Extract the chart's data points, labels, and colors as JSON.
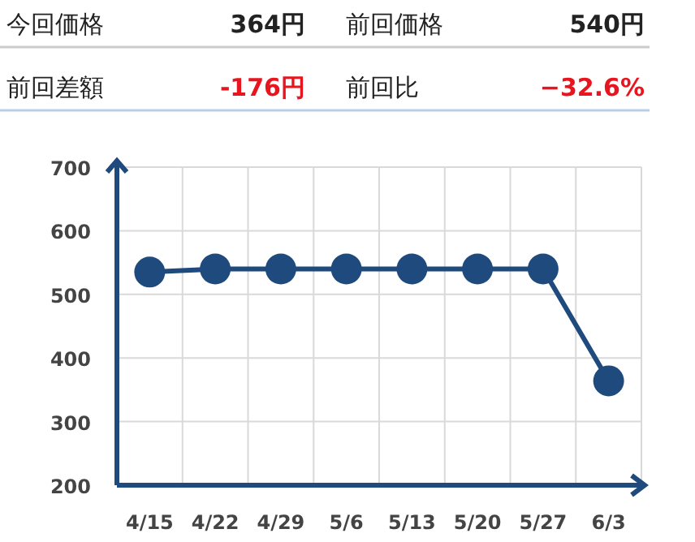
{
  "chart_data": [
    {
      "type": "other",
      "annotations": [
        "今回価格",
        "364円",
        "前回価格",
        "540円",
        "前回差額",
        "-176円",
        "前回比",
        "−32.6%"
      ]
    },
    {
      "type": "line",
      "categories": [
        "4/15",
        "4/22",
        "4/29",
        "5/6",
        "5/13",
        "5/20",
        "5/27",
        "6/3"
      ],
      "series": [
        {
          "color": "#1f4a7d",
          "values": [
            535,
            540,
            540,
            540,
            540,
            540,
            540,
            364
          ]
        }
      ],
      "ylim": [
        200,
        700
      ],
      "yticks": [
        200,
        300,
        400,
        500,
        600,
        700
      ],
      "grid": true,
      "marker": "circle",
      "line_style": "solid"
    }
  ]
}
